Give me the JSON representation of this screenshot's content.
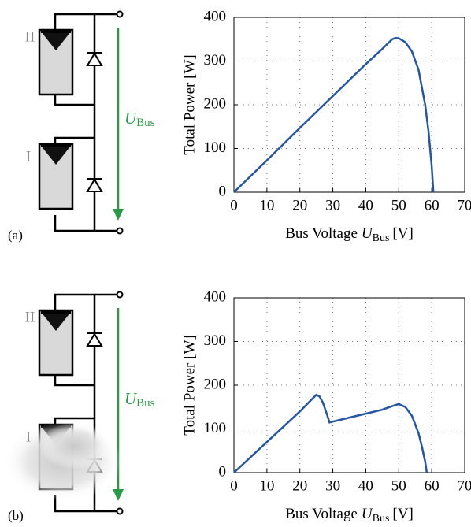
{
  "chart_data": [
    {
      "type": "line",
      "panel_label": "(a)",
      "module_labels": [
        "II",
        "I"
      ],
      "voltage_symbol": "U",
      "voltage_subscript": "Bus",
      "y_label": "Total Power [W]",
      "x_label": "Bus Voltage",
      "x_label_symbol": "U",
      "x_label_subscript": "Bus",
      "x_label_unit": "[V]",
      "x": [
        0,
        10,
        20,
        30,
        40,
        45,
        48,
        49,
        50,
        52,
        54,
        56,
        58,
        59,
        60,
        60.5
      ],
      "values": [
        0,
        73,
        147,
        220,
        293,
        328,
        350,
        353,
        352,
        343,
        322,
        280,
        200,
        140,
        60,
        0
      ],
      "color": "#2456a4",
      "xlim": [
        0,
        70
      ],
      "xticks": [
        0,
        10,
        20,
        30,
        40,
        50,
        60,
        70
      ],
      "ylim": [
        0,
        400
      ],
      "yticks": [
        0,
        100,
        200,
        300,
        400
      ],
      "grid": true
    },
    {
      "type": "line",
      "panel_label": "(b)",
      "module_labels": [
        "II",
        "I"
      ],
      "voltage_symbol": "U",
      "voltage_subscript": "Bus",
      "y_label": "Total Power [W]",
      "x_label": "Bus Voltage",
      "x_label_symbol": "U",
      "x_label_subscript": "Bus",
      "x_label_unit": "[V]",
      "x": [
        0,
        10,
        20,
        23,
        25,
        26,
        27,
        28,
        29,
        35,
        40,
        45,
        48,
        50,
        52,
        54,
        56,
        57,
        58,
        58.5
      ],
      "values": [
        0,
        70,
        140,
        163,
        178,
        174,
        160,
        138,
        115,
        126,
        135,
        144,
        152,
        157,
        150,
        130,
        90,
        60,
        25,
        0
      ],
      "color": "#2456a4",
      "xlim": [
        0,
        70
      ],
      "xticks": [
        0,
        10,
        20,
        30,
        40,
        50,
        60,
        70
      ],
      "ylim": [
        0,
        400
      ],
      "yticks": [
        0,
        100,
        200,
        300,
        400
      ],
      "grid": true
    }
  ]
}
